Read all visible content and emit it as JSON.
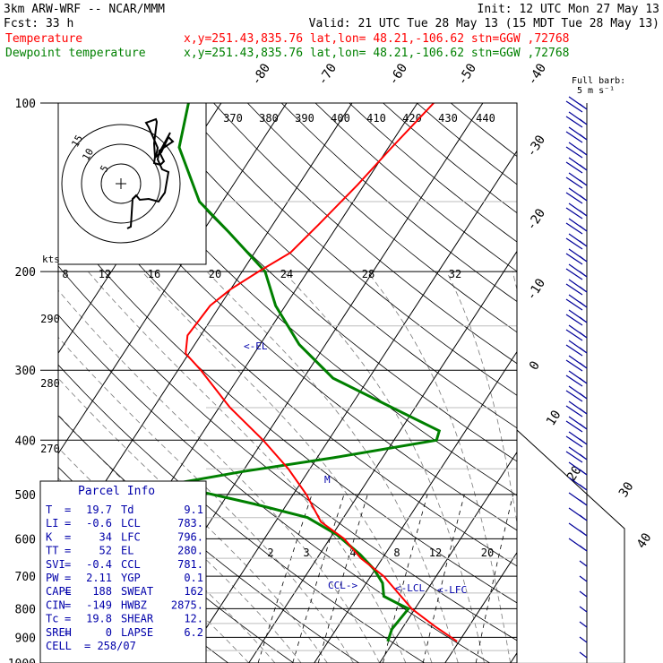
{
  "header": {
    "model": "3km ARW-WRF -- NCAR/MMM",
    "init": "Init: 12 UTC Mon 27 May 13",
    "fcst": "Fcst:   33 h",
    "valid": "Valid: 21 UTC Tue 28 May 13 (15 MDT Tue 28 May 13)",
    "temp_label": "Temperature",
    "dew_label": "Dewpoint temperature",
    "location": "x,y=251.43,835.76   lat,lon= 48.21,-106.62   stn=GGW ,72768",
    "temp_color": "#ff0000",
    "dew_color": "#008000"
  },
  "wind_key": {
    "title": "Full barb:",
    "value": "5 m s⁻¹"
  },
  "hodograph": {
    "units": "kts",
    "ring_labels": [
      "5",
      "10",
      "15"
    ]
  },
  "parcel_info": {
    "title": "Parcel Info",
    "rows": [
      {
        "k1": "T",
        "v1": "19.7",
        "k2": "Td",
        "v2": "9.1"
      },
      {
        "k1": "LI",
        "v1": "-0.6",
        "k2": "LCL",
        "v2": "783."
      },
      {
        "k1": "K",
        "v1": "34",
        "k2": "LFC",
        "v2": "796."
      },
      {
        "k1": "TT",
        "v1": "52",
        "k2": "EL",
        "v2": "280."
      },
      {
        "k1": "SVI",
        "v1": "-0.4",
        "k2": "CCL",
        "v2": "781."
      },
      {
        "k1": "PW",
        "v1": "2.11",
        "k2": "YGP",
        "v2": "0.1"
      },
      {
        "k1": "CAPE",
        "v1": "188",
        "k2": "SWEAT",
        "v2": "162"
      },
      {
        "k1": "CIN",
        "v1": "-149",
        "k2": "HWBZ",
        "v2": "2875."
      },
      {
        "k1": "Tc",
        "v1": "19.8",
        "k2": "SHEAR",
        "v2": "12."
      },
      {
        "k1": "SREH",
        "v1": "0",
        "k2": "LAPSE",
        "v2": "6.2"
      },
      {
        "k1": "CELL",
        "v1": "258/07",
        "k2": "",
        "v2": ""
      }
    ]
  },
  "annotations": {
    "el": "<-EL",
    "ccl": "CCL->",
    "lcl": "<-LCL",
    "lfc": "<-LFC",
    "m": "M"
  },
  "chart_data": {
    "type": "line",
    "title": "",
    "pressure_levels": [
      100,
      200,
      300,
      400,
      500,
      600,
      700,
      800,
      900,
      1000
    ],
    "pressure_labels": [
      "100",
      "200",
      "300",
      "400",
      "500",
      "600",
      "700",
      "800",
      "900",
      "1000"
    ],
    "temperature_ticks": [
      "-80",
      "-70",
      "-60",
      "-50",
      "-40",
      "-30",
      "-20",
      "-10",
      "0",
      "10",
      "20",
      "30",
      "40"
    ],
    "theta_labels": [
      "370",
      "380",
      "390",
      "400",
      "410",
      "420",
      "430",
      "440"
    ],
    "theta_e_labels": [
      "290",
      "280",
      "270"
    ],
    "mixing_ratio_upper_labels": [
      "8",
      "12",
      "16",
      "20",
      "24",
      "28",
      "32"
    ],
    "mixing_ratio_lower_labels": [
      "2",
      "3",
      "4",
      "8",
      "12",
      "20"
    ],
    "series": [
      {
        "name": "Temperature",
        "color": "#ff0000",
        "pressure": [
          915,
          860,
          800,
          700,
          650,
          600,
          560,
          500,
          450,
          400,
          350,
          300,
          280,
          260,
          230,
          215,
          200,
          185,
          165,
          140,
          120,
          100
        ],
        "temperature": [
          19.7,
          14.8,
          9.5,
          2.0,
          -3.3,
          -7.8,
          -13.0,
          -18.0,
          -23.3,
          -30.0,
          -38.3,
          -46.5,
          -50.5,
          -52.0,
          -51.5,
          -50.0,
          -47.5,
          -44.5,
          -43.0,
          -41.0,
          -39.5,
          -37.5
        ]
      },
      {
        "name": "Dewpoint temperature",
        "color": "#008000",
        "pressure": [
          915,
          870,
          800,
          780,
          760,
          720,
          680,
          640,
          590,
          550,
          520,
          480,
          455,
          430,
          400,
          385,
          350,
          310,
          270,
          230,
          200,
          170,
          150,
          120,
          100
        ],
        "temperature": [
          9.1,
          8.5,
          9.0,
          6.5,
          4.0,
          2.5,
          -0.2,
          -3.8,
          -9.3,
          -15.5,
          -25.0,
          -40.0,
          -30.0,
          -17.5,
          -3.5,
          -4.0,
          -13.5,
          -25.5,
          -34.0,
          -41.5,
          -46.5,
          -56.0,
          -63.5,
          -72.0,
          -75.0
        ]
      }
    ]
  }
}
